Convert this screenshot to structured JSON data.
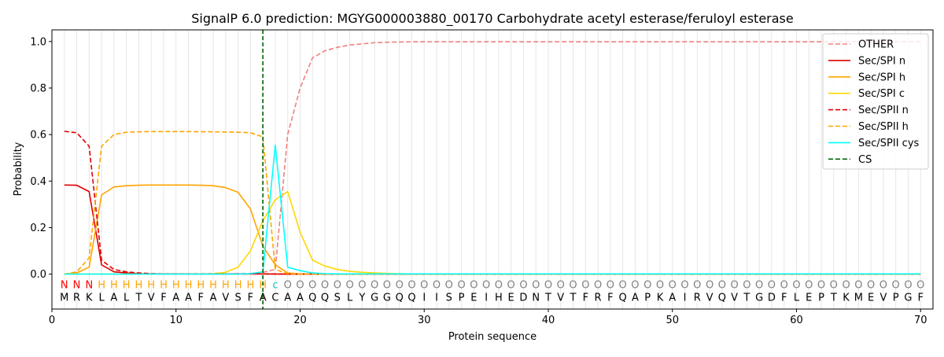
{
  "chart_data": {
    "type": "line",
    "title": "SignalP 6.0 prediction: MGYG000003880_00170 Carbohydrate acetyl esterase/feruloyl esterase",
    "xlabel": "Protein sequence",
    "ylabel": "Probability",
    "xlim": [
      0,
      71
    ],
    "ylim": [
      -0.15,
      1.05
    ],
    "xticks": [
      0,
      10,
      20,
      30,
      40,
      50,
      60,
      70
    ],
    "yticks": [
      0.0,
      0.2,
      0.4,
      0.6,
      0.8,
      1.0
    ],
    "ytick_labels": [
      "0.0",
      "0.2",
      "0.4",
      "0.6",
      "0.8",
      "1.0"
    ],
    "grid": "vertical lines at each residue",
    "legend_position": "top-right",
    "sequence": "MRKLALTVFAAFAVSFACAAQQSLYGGQQIISPEIHEDNTVTFRFQAPKAIRVQVTGDFLEPTKMEVPGF",
    "annotation": "NNNHHHHHHHHHHHHHHcOOOOOOOOOOOOOOOOOOOOOOOOOOOOOOOOOOOOOOOOOOOOOOOOOOOO",
    "annotation_colors": {
      "N": "#ff0000",
      "H": "#ffa500",
      "c": "#00cccc",
      "O": "#808080"
    },
    "cleavage_site": 17,
    "series": [
      {
        "name": "OTHER",
        "color": "#f08080",
        "dash": "dashed",
        "values": [
          0,
          0,
          0,
          0,
          0,
          0,
          0,
          0,
          0,
          0,
          0,
          0,
          0,
          0,
          0.002,
          0.003,
          0.008,
          0.02,
          0.6,
          0.8,
          0.93,
          0.96,
          0.975,
          0.985,
          0.99,
          0.995,
          0.997,
          0.998,
          0.999,
          0.999,
          0.999,
          0.999,
          0.999,
          0.999,
          0.999,
          0.999,
          0.999,
          0.999,
          0.999,
          0.999,
          0.999,
          0.999,
          0.999,
          0.999,
          0.999,
          0.999,
          0.999,
          0.999,
          0.999,
          0.999,
          0.999,
          0.999,
          0.999,
          0.999,
          0.999,
          0.999,
          0.999,
          0.999,
          0.999,
          0.999,
          0.999,
          0.999,
          0.999,
          0.999,
          0.999,
          0.999,
          0.999,
          0.999,
          0.999,
          0.999
        ]
      },
      {
        "name": "Sec/SPI n",
        "color": "#e00000",
        "dash": "solid",
        "values": [
          0.383,
          0.382,
          0.355,
          0.04,
          0.01,
          0.005,
          0.002,
          0.001,
          0.001,
          0.001,
          0.001,
          0.001,
          0.001,
          0.001,
          0.001,
          0.001,
          0.001,
          0,
          0,
          0,
          0,
          0,
          0,
          0,
          0,
          0,
          0,
          0,
          0,
          0,
          0,
          0,
          0,
          0,
          0,
          0,
          0,
          0,
          0,
          0,
          0,
          0,
          0,
          0,
          0,
          0,
          0,
          0,
          0,
          0,
          0,
          0,
          0,
          0,
          0,
          0,
          0,
          0,
          0,
          0,
          0,
          0,
          0,
          0,
          0,
          0,
          0,
          0,
          0,
          0
        ]
      },
      {
        "name": "Sec/SPI h",
        "color": "#ffa500",
        "dash": "solid",
        "values": [
          0,
          0.005,
          0.03,
          0.34,
          0.375,
          0.38,
          0.382,
          0.383,
          0.383,
          0.383,
          0.383,
          0.382,
          0.38,
          0.372,
          0.352,
          0.28,
          0.12,
          0.04,
          0.005,
          0.001,
          0,
          0,
          0,
          0,
          0,
          0,
          0,
          0,
          0,
          0,
          0,
          0,
          0,
          0,
          0,
          0,
          0,
          0,
          0,
          0,
          0,
          0,
          0,
          0,
          0,
          0,
          0,
          0,
          0,
          0,
          0,
          0,
          0,
          0,
          0,
          0,
          0,
          0,
          0,
          0,
          0,
          0,
          0,
          0,
          0,
          0,
          0,
          0,
          0,
          0
        ]
      },
      {
        "name": "Sec/SPI c",
        "color": "#ffd700",
        "dash": "solid",
        "values": [
          0,
          0,
          0,
          0,
          0,
          0,
          0,
          0,
          0,
          0,
          0,
          0.001,
          0.002,
          0.008,
          0.03,
          0.1,
          0.23,
          0.32,
          0.355,
          0.18,
          0.06,
          0.035,
          0.02,
          0.012,
          0.008,
          0.005,
          0.003,
          0.002,
          0.001,
          0.001,
          0.001,
          0.001,
          0.001,
          0.001,
          0.001,
          0.001,
          0.001,
          0.001,
          0.001,
          0.001,
          0.001,
          0.001,
          0.001,
          0.001,
          0.001,
          0.001,
          0.001,
          0.001,
          0.001,
          0.001,
          0.001,
          0.001,
          0.001,
          0.001,
          0.001,
          0.001,
          0.001,
          0.001,
          0.001,
          0.001,
          0.001,
          0.001,
          0.001,
          0.001,
          0.001,
          0.001,
          0.001,
          0.001,
          0.001,
          0.001
        ]
      },
      {
        "name": "Sec/SPII n",
        "color": "#e00000",
        "dash": "dashed",
        "values": [
          0.614,
          0.608,
          0.55,
          0.06,
          0.02,
          0.01,
          0.005,
          0.002,
          0.001,
          0.001,
          0.001,
          0.001,
          0.001,
          0.001,
          0.001,
          0.001,
          0.001,
          0.001,
          0,
          0,
          0,
          0,
          0,
          0,
          0,
          0,
          0,
          0,
          0,
          0,
          0,
          0,
          0,
          0,
          0,
          0,
          0,
          0,
          0,
          0,
          0,
          0,
          0,
          0,
          0,
          0,
          0,
          0,
          0,
          0,
          0,
          0,
          0,
          0,
          0,
          0,
          0,
          0,
          0,
          0,
          0,
          0,
          0,
          0,
          0,
          0,
          0,
          0,
          0,
          0
        ]
      },
      {
        "name": "Sec/SPII h",
        "color": "#ffa500",
        "dash": "dashed",
        "values": [
          0,
          0.01,
          0.07,
          0.55,
          0.6,
          0.61,
          0.612,
          0.613,
          0.613,
          0.613,
          0.613,
          0.612,
          0.612,
          0.611,
          0.61,
          0.608,
          0.59,
          0.02,
          0.002,
          0,
          0,
          0,
          0,
          0,
          0,
          0,
          0,
          0,
          0,
          0,
          0,
          0,
          0,
          0,
          0,
          0,
          0,
          0,
          0,
          0,
          0,
          0,
          0,
          0,
          0,
          0,
          0,
          0,
          0,
          0,
          0,
          0,
          0,
          0,
          0,
          0,
          0,
          0,
          0,
          0,
          0,
          0,
          0,
          0,
          0,
          0,
          0,
          0,
          0,
          0
        ]
      },
      {
        "name": "Sec/SPII cys",
        "color": "#00ffff",
        "dash": "solid",
        "values": [
          0,
          0,
          0,
          0,
          0,
          0,
          0,
          0,
          0,
          0,
          0,
          0,
          0,
          0,
          0,
          0.002,
          0.01,
          0.555,
          0.03,
          0.015,
          0.005,
          0.002,
          0.001,
          0.001,
          0.001,
          0.001,
          0.001,
          0.001,
          0.001,
          0.001,
          0.001,
          0.001,
          0.001,
          0.001,
          0.001,
          0.001,
          0.001,
          0.001,
          0.001,
          0.001,
          0.001,
          0.001,
          0.001,
          0.001,
          0.001,
          0.001,
          0.001,
          0.001,
          0.001,
          0.001,
          0.001,
          0.001,
          0.001,
          0.001,
          0.001,
          0.001,
          0.001,
          0.001,
          0.001,
          0.001,
          0.001,
          0.001,
          0.001,
          0.001,
          0.001,
          0.001,
          0.001,
          0.001,
          0.001,
          0.001
        ]
      },
      {
        "name": "CS",
        "color": "#006400",
        "dash": "dashed",
        "values": []
      }
    ]
  }
}
